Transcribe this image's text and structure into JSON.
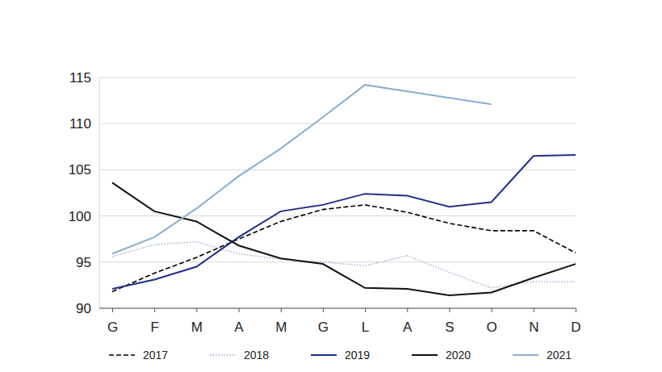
{
  "chart_data": {
    "type": "line",
    "categories": [
      "G",
      "F",
      "M",
      "A",
      "M",
      "G",
      "L",
      "A",
      "S",
      "O",
      "N",
      "D"
    ],
    "series": [
      {
        "name": "2017",
        "color": "#000000",
        "line_style": "dashed",
        "values": [
          91.8,
          93.8,
          95.5,
          97.5,
          99.4,
          100.7,
          101.2,
          100.4,
          99.2,
          98.4,
          98.4,
          96.0
        ]
      },
      {
        "name": "2018",
        "color": "#8fa8c8",
        "line_style": "dotted",
        "values": [
          95.6,
          96.9,
          97.2,
          95.9,
          95.3,
          95.0,
          94.6,
          95.7,
          93.9,
          92.2,
          92.9,
          92.9
        ]
      },
      {
        "name": "2019",
        "color": "#1f2f8a",
        "line_style": "solid",
        "values": [
          92.1,
          93.1,
          94.5,
          97.7,
          100.5,
          101.2,
          102.4,
          102.2,
          101.0,
          101.5,
          106.5,
          106.6
        ]
      },
      {
        "name": "2020",
        "color": "#111111",
        "line_style": "solid",
        "values": [
          103.6,
          100.5,
          99.4,
          96.8,
          95.4,
          94.8,
          92.2,
          92.1,
          91.4,
          91.7,
          93.3,
          94.8
        ]
      },
      {
        "name": "2021",
        "color": "#8aaed0",
        "line_style": "solid",
        "values": [
          95.9,
          97.7,
          100.8,
          104.3,
          107.3,
          110.7,
          114.2,
          113.5,
          112.8,
          112.1,
          null,
          null
        ]
      }
    ],
    "ylim": [
      90,
      115
    ],
    "yticks": [
      90,
      95,
      100,
      105,
      110,
      115
    ],
    "grid": true,
    "legend": "bottom"
  }
}
